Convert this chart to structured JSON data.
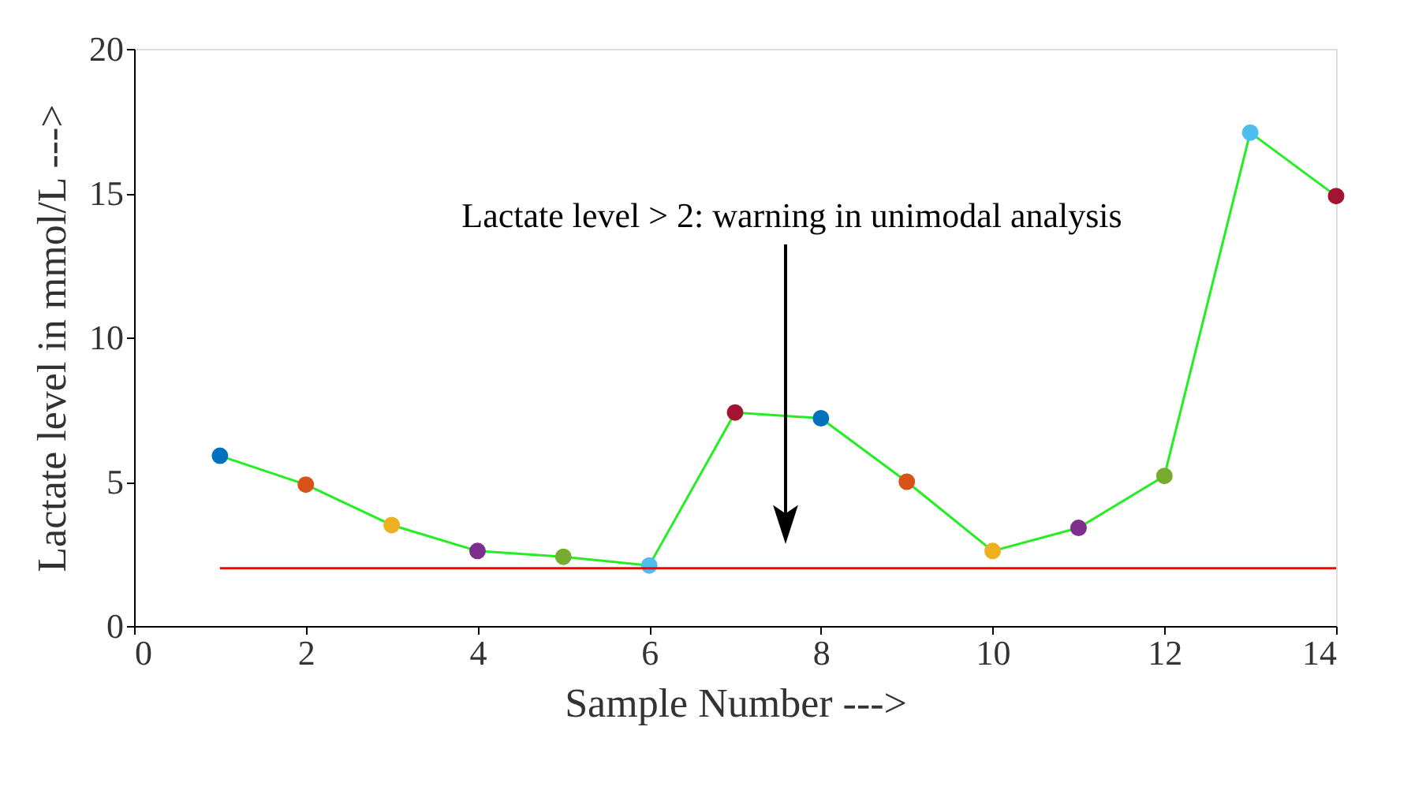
{
  "chart_data": {
    "type": "line",
    "xlabel": "Sample Number --->",
    "ylabel": "Lactate level in mmol/L --->",
    "x": [
      1,
      2,
      3,
      4,
      5,
      6,
      7,
      8,
      9,
      10,
      11,
      12,
      13,
      14
    ],
    "series": [
      {
        "color": "#22ee22",
        "colors": [
          "#0072bd",
          "#d95319",
          "#edb120",
          "#7e2f8e",
          "#77ac30",
          "#4dbeee",
          "#a2142f",
          "#0072bd",
          "#d95319",
          "#edb120",
          "#7e2f8e",
          "#77ac30",
          "#4dbeee",
          "#a2142f"
        ],
        "values": [
          5.9,
          4.9,
          3.5,
          2.6,
          2.4,
          2.1,
          7.4,
          7.2,
          5.0,
          2.6,
          3.4,
          5.2,
          17.1,
          14.9
        ]
      }
    ],
    "ref_lines": [
      {
        "axis": "y",
        "value": 2,
        "color": "#ff0000"
      }
    ],
    "annotations": [
      "Lactate level > 2: warning in unimodal analysis"
    ],
    "xlim": [
      0,
      14
    ],
    "xticks": [
      0,
      2,
      4,
      6,
      8,
      10,
      12,
      14
    ],
    "ylim": [
      0,
      20
    ],
    "yticks": [
      0,
      5,
      10,
      15,
      20
    ],
    "grid": false,
    "marker": "circle",
    "line_style": "solid"
  }
}
